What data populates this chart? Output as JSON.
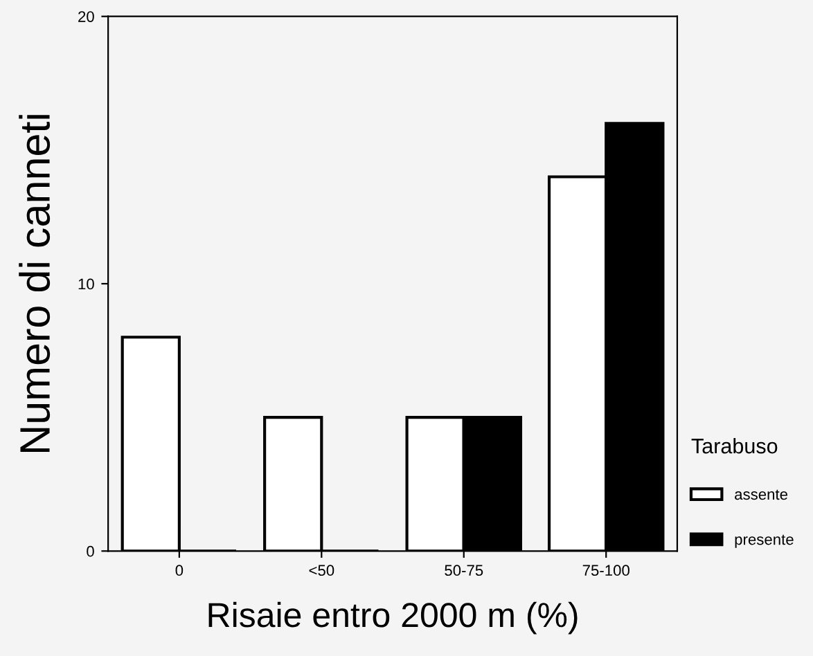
{
  "chart_data": {
    "type": "bar",
    "xlabel": "Risaie entro 2000 m (%)",
    "ylabel": "Numero di canneti",
    "legend_title": "Tarabuso",
    "categories": [
      "0",
      "<50",
      "50-75",
      "75-100"
    ],
    "series": [
      {
        "name": "assente",
        "color": "#ffffff",
        "values": [
          8,
          5,
          5,
          14
        ]
      },
      {
        "name": "presente",
        "color": "#000000",
        "values": [
          0,
          0,
          5,
          16
        ]
      }
    ],
    "ylim": [
      0,
      20
    ],
    "yticks": [
      0,
      10,
      20
    ],
    "grid": false,
    "legend": "right"
  }
}
